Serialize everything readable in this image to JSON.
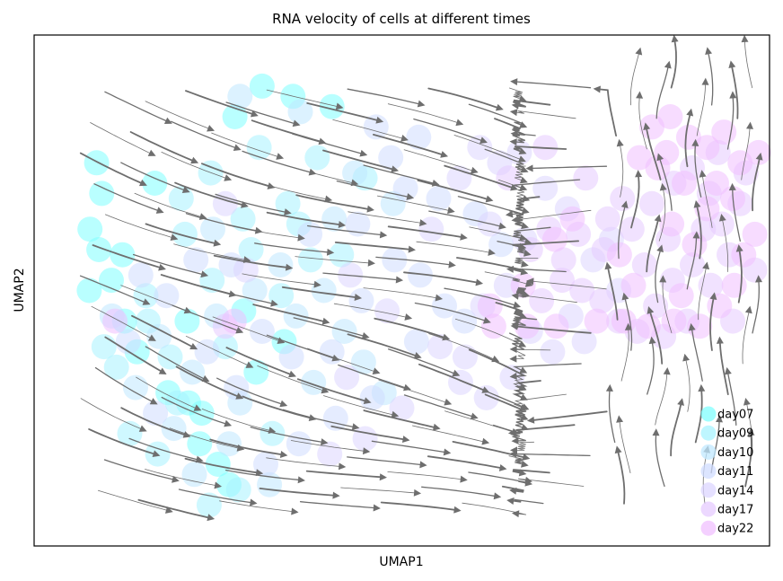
{
  "chart_data": {
    "type": "scatter",
    "title": "RNA velocity of cells at different times",
    "xlabel": "UMAP1",
    "ylabel": "UMAP2",
    "ticks": "none",
    "legend_placement": "lower-right",
    "series": [
      {
        "name": "day07",
        "color": "#80ffff",
        "points": [
          [
            8.5,
            75
          ],
          [
            9.2,
            69
          ],
          [
            7.6,
            62
          ],
          [
            8.8,
            58
          ],
          [
            10.5,
            52
          ],
          [
            12.3,
            44
          ],
          [
            14.0,
            38
          ],
          [
            18.2,
            30
          ],
          [
            21.0,
            28
          ],
          [
            22.5,
            20
          ],
          [
            25.0,
            16
          ],
          [
            26.5,
            12
          ],
          [
            30.2,
            34
          ],
          [
            34.0,
            40
          ],
          [
            12.0,
            57
          ],
          [
            20.8,
            44
          ],
          [
            28.5,
            46
          ],
          [
            16.4,
            71
          ],
          [
            27.3,
            84
          ],
          [
            35.2,
            88
          ],
          [
            40.5,
            86
          ],
          [
            31.0,
            90
          ],
          [
            7.5,
            50
          ],
          [
            22.8,
            26
          ]
        ]
      },
      {
        "name": "day09",
        "color": "#a8f3ff",
        "points": [
          [
            13.0,
            22
          ],
          [
            18.5,
            37
          ],
          [
            24.2,
            52
          ],
          [
            33.6,
            49
          ],
          [
            11.2,
            35
          ],
          [
            16.8,
            18
          ],
          [
            28.4,
            64
          ],
          [
            36.0,
            63
          ],
          [
            41.8,
            57
          ],
          [
            20.5,
            61
          ],
          [
            9.5,
            39
          ],
          [
            15.2,
            49
          ],
          [
            26.0,
            39
          ],
          [
            19.5,
            28
          ],
          [
            32.4,
            22
          ],
          [
            24.0,
            73
          ],
          [
            29.5,
            58
          ],
          [
            45.0,
            72
          ],
          [
            38.5,
            76
          ],
          [
            15.5,
            44
          ],
          [
            20.0,
            68
          ],
          [
            30.6,
            78
          ],
          [
            34.5,
            67
          ],
          [
            37.6,
            56
          ],
          [
            23.8,
            8
          ],
          [
            27.8,
            11
          ]
        ]
      },
      {
        "name": "day10",
        "color": "#c0e8ff",
        "points": [
          [
            10.6,
            45
          ],
          [
            13.8,
            31
          ],
          [
            17.0,
            41
          ],
          [
            21.5,
            34
          ],
          [
            24.8,
            45
          ],
          [
            30.0,
            50
          ],
          [
            35.6,
            45
          ],
          [
            39.4,
            50
          ],
          [
            42.2,
            42
          ],
          [
            44.8,
            36
          ],
          [
            47.6,
            30
          ],
          [
            28.0,
            28
          ],
          [
            32.0,
            12
          ],
          [
            19.0,
            23
          ],
          [
            38.0,
            32
          ],
          [
            40.8,
            64
          ],
          [
            43.6,
            73
          ],
          [
            48.8,
            67
          ],
          [
            36.2,
            85
          ],
          [
            28.0,
            88
          ],
          [
            24.3,
            62
          ],
          [
            33.5,
            55
          ],
          [
            26.5,
            20
          ],
          [
            21.8,
            14
          ]
        ]
      },
      {
        "name": "day11",
        "color": "#d0dcff",
        "points": [
          [
            14.5,
            53
          ],
          [
            18.0,
            49
          ],
          [
            22.0,
            56
          ],
          [
            26.8,
            55
          ],
          [
            31.0,
            42
          ],
          [
            35.0,
            37
          ],
          [
            40.5,
            38
          ],
          [
            44.5,
            48
          ],
          [
            49.0,
            56
          ],
          [
            52.5,
            53
          ],
          [
            55.8,
            47
          ],
          [
            58.5,
            44
          ],
          [
            46.0,
            29
          ],
          [
            41.0,
            25
          ],
          [
            36.0,
            20
          ],
          [
            31.5,
            16
          ],
          [
            27.5,
            31
          ],
          [
            23.5,
            38
          ],
          [
            37.5,
            61
          ],
          [
            44.0,
            63
          ],
          [
            50.5,
            70
          ],
          [
            55.0,
            68
          ],
          [
            60.0,
            65
          ],
          [
            63.5,
            59
          ],
          [
            52.0,
            40
          ],
          [
            48.5,
            76
          ],
          [
            12.8,
            40
          ],
          [
            16.5,
            26
          ],
          [
            46.5,
            82
          ],
          [
            52.3,
            80
          ]
        ]
      },
      {
        "name": "day14",
        "color": "#dcd6ff",
        "points": [
          [
            55.2,
            39
          ],
          [
            58.6,
            37
          ],
          [
            61.0,
            47
          ],
          [
            64.2,
            51
          ],
          [
            67.5,
            42
          ],
          [
            70.5,
            38
          ],
          [
            73.0,
            45
          ],
          [
            76.0,
            56
          ],
          [
            78.5,
            60
          ],
          [
            54.0,
            62
          ],
          [
            57.8,
            72
          ],
          [
            60.6,
            78
          ],
          [
            63.3,
            75
          ],
          [
            66.0,
            77
          ],
          [
            69.5,
            70
          ],
          [
            72.5,
            66
          ],
          [
            65.0,
            33
          ],
          [
            61.5,
            29
          ],
          [
            50.0,
            27
          ],
          [
            45.0,
            21
          ],
          [
            40.2,
            18
          ],
          [
            28.8,
            54
          ],
          [
            26.0,
            67
          ],
          [
            42.5,
            33
          ],
          [
            58.0,
            32
          ],
          [
            74.8,
            40
          ],
          [
            79.5,
            50
          ],
          [
            48.0,
            46
          ],
          [
            43.0,
            53
          ],
          [
            66.7,
            60
          ],
          [
            62.0,
            63
          ]
        ]
      },
      {
        "name": "day17",
        "color": "#e6cbff",
        "points": [
          [
            69.0,
            48
          ],
          [
            71.8,
            52
          ],
          [
            74.5,
            50
          ],
          [
            77.2,
            48
          ],
          [
            79.5,
            44
          ],
          [
            82.0,
            42
          ],
          [
            84.5,
            47
          ],
          [
            86.8,
            52
          ],
          [
            89.5,
            55
          ],
          [
            92.0,
            51
          ],
          [
            94.5,
            57
          ],
          [
            75.0,
            72
          ],
          [
            78.0,
            64
          ],
          [
            81.3,
            62
          ],
          [
            84.0,
            67
          ],
          [
            87.0,
            71
          ],
          [
            89.5,
            74
          ],
          [
            91.8,
            69
          ],
          [
            93.5,
            63
          ],
          [
            96.0,
            67
          ],
          [
            96.8,
            73
          ],
          [
            86.2,
            60
          ],
          [
            91.0,
            62
          ],
          [
            83.0,
            55
          ],
          [
            85.6,
            41
          ],
          [
            88.8,
            44
          ],
          [
            95.0,
            44
          ],
          [
            98.0,
            54
          ],
          [
            72.0,
            56
          ],
          [
            80.0,
            68
          ],
          [
            74.0,
            61
          ],
          [
            64.5,
            72
          ],
          [
            67.5,
            58
          ],
          [
            70.0,
            62
          ],
          [
            93.0,
            77
          ],
          [
            77.5,
            58
          ],
          [
            69.5,
            78
          ],
          [
            26.0,
            43
          ]
        ]
      },
      {
        "name": "day22",
        "color": "#f0c0ff",
        "points": [
          [
            84.0,
            82
          ],
          [
            86.5,
            84
          ],
          [
            89.0,
            80
          ],
          [
            91.5,
            78
          ],
          [
            93.8,
            81
          ],
          [
            96.0,
            75
          ],
          [
            98.5,
            77
          ],
          [
            86.0,
            77
          ],
          [
            88.4,
            71
          ],
          [
            92.8,
            71
          ],
          [
            95.0,
            68
          ],
          [
            98.0,
            61
          ],
          [
            96.5,
            57
          ],
          [
            95.2,
            51
          ],
          [
            93.2,
            47
          ],
          [
            90.5,
            43
          ],
          [
            87.0,
            44
          ],
          [
            83.5,
            43
          ],
          [
            80.2,
            44
          ],
          [
            76.5,
            44
          ],
          [
            71.0,
            43
          ],
          [
            67.0,
            43
          ],
          [
            62.5,
            43
          ],
          [
            70.8,
            60
          ],
          [
            73.2,
            64
          ],
          [
            91.5,
            66
          ],
          [
            89.8,
            59
          ],
          [
            84.8,
            74
          ],
          [
            86.7,
            63
          ],
          [
            82.3,
            76
          ],
          [
            79.6,
            57
          ],
          [
            81.5,
            51
          ],
          [
            88.0,
            49
          ],
          [
            66.5,
            51
          ],
          [
            11.0,
            44
          ],
          [
            62.0,
            47
          ],
          [
            27.2,
            44
          ]
        ]
      }
    ]
  }
}
